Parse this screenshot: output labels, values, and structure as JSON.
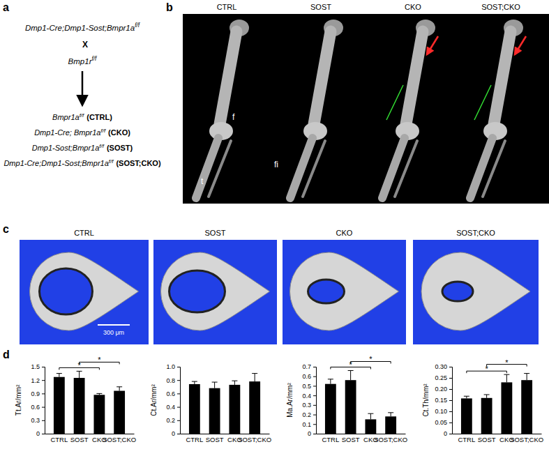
{
  "panel_labels": [
    "a",
    "b",
    "c",
    "d"
  ],
  "panel_a": {
    "parent1": [
      {
        "text": "Dmp1-Cre;Dmp1-Sost;Bmpr1a",
        "style": "italic"
      },
      {
        "text": "f/f",
        "style": "sup"
      }
    ],
    "cross": [
      {
        "text": "X",
        "style": "bold"
      }
    ],
    "parent2": [
      {
        "text": "Bmp1r",
        "style": "italic"
      },
      {
        "text": "f/f",
        "style": "sup"
      }
    ],
    "offspring": [
      [
        {
          "text": "Bmpr1a",
          "style": "italic"
        },
        {
          "text": "f/f",
          "style": "sup"
        },
        {
          "text": "(CTRL)",
          "style": "bold"
        }
      ],
      [
        {
          "text": "Dmp1-Cre; Bmpr1a",
          "style": "italic"
        },
        {
          "text": "f/f",
          "style": "sup"
        },
        {
          "text": "(CKO)",
          "style": "bold"
        }
      ],
      [
        {
          "text": "Dmp1-Sost;Bmpr1a",
          "style": "italic"
        },
        {
          "text": "f/f",
          "style": "sup"
        },
        {
          "text": "(SOST)",
          "style": "bold"
        }
      ],
      [
        {
          "text": "Dmp1-Cre;Dmp1-Sost;Bmpr1a",
          "style": "italic"
        },
        {
          "text": "f/f",
          "style": "sup"
        },
        {
          "text": "(SOST;CKO)",
          "style": "bold"
        }
      ]
    ]
  },
  "panel_b": {
    "titles": [
      "CTRL",
      "SOST",
      "CKO",
      "SOST;CKO"
    ],
    "bone_labels": [
      "f",
      "fi",
      "t"
    ]
  },
  "panel_c": {
    "titles": [
      "CTRL",
      "SOST",
      "CKO",
      "SOST;CKO"
    ],
    "scale_bar": "300 μm"
  },
  "chart_data": [
    {
      "type": "bar",
      "ylabel": "Tt.Ar/mm²",
      "categories": [
        "CTRL",
        "SOST",
        "CKO",
        "SOST;CKO"
      ],
      "values": [
        1.27,
        1.25,
        0.87,
        0.96
      ],
      "errors": [
        0.08,
        0.15,
        0.03,
        0.09
      ],
      "color": "#000000",
      "ylim": [
        0,
        1.5
      ],
      "yticks": [
        0,
        0.3,
        0.6,
        0.9,
        1.2,
        1.5
      ],
      "significance": [
        {
          "between": [
            "CTRL",
            "CKO"
          ],
          "label": "*"
        },
        {
          "between": [
            "SOST",
            "SOST;CKO"
          ],
          "label": "*"
        }
      ]
    },
    {
      "type": "bar",
      "ylabel": "Ct.Ar/mm²",
      "categories": [
        "CTRL",
        "SOST",
        "CKO",
        "SOST;CKO"
      ],
      "values": [
        0.74,
        0.68,
        0.73,
        0.78
      ],
      "errors": [
        0.04,
        0.09,
        0.06,
        0.12
      ],
      "color": "#000000",
      "ylim": [
        0,
        1
      ],
      "yticks": [
        0,
        0.2,
        0.4,
        0.6,
        0.8,
        {
          "value": 1,
          "label": "1.0"
        }
      ],
      "significance": []
    },
    {
      "type": "bar",
      "ylabel": "Ma.Ar/mm²",
      "categories": [
        "CTRL",
        "SOST",
        "CKO",
        "SOST;CKO"
      ],
      "values": [
        0.52,
        0.56,
        0.15,
        0.18
      ],
      "errors": [
        0.05,
        0.1,
        0.06,
        0.04
      ],
      "color": "#000000",
      "ylim": [
        0,
        0.7
      ],
      "yticks": [
        0,
        0.1,
        0.2,
        0.3,
        0.4,
        0.5,
        0.6,
        0.7
      ],
      "significance": [
        {
          "between": [
            "CTRL",
            "CKO"
          ],
          "label": "*"
        },
        {
          "between": [
            "SOST",
            "SOST;CKO"
          ],
          "label": "*"
        }
      ]
    },
    {
      "type": "bar",
      "ylabel": "Ct.Th/mm²",
      "categories": [
        "CTRL",
        "SOST",
        "CKO",
        "SOST;CKO"
      ],
      "values": [
        0.158,
        0.16,
        0.23,
        0.24
      ],
      "errors": [
        0.01,
        0.015,
        0.035,
        0.03
      ],
      "color": "#000000",
      "ylim": [
        0,
        0.3
      ],
      "yticks": [
        0,
        0.05,
        {
          "value": 0.1,
          "label": "0.10"
        },
        0.15,
        {
          "value": 0.2,
          "label": "0.20"
        },
        0.25,
        {
          "value": 0.3,
          "label": "0.30"
        }
      ],
      "significance": [
        {
          "between": [
            "CTRL",
            "CKO"
          ],
          "label": "*"
        },
        {
          "between": [
            "SOST",
            "SOST;CKO"
          ],
          "label": "*"
        }
      ]
    }
  ]
}
